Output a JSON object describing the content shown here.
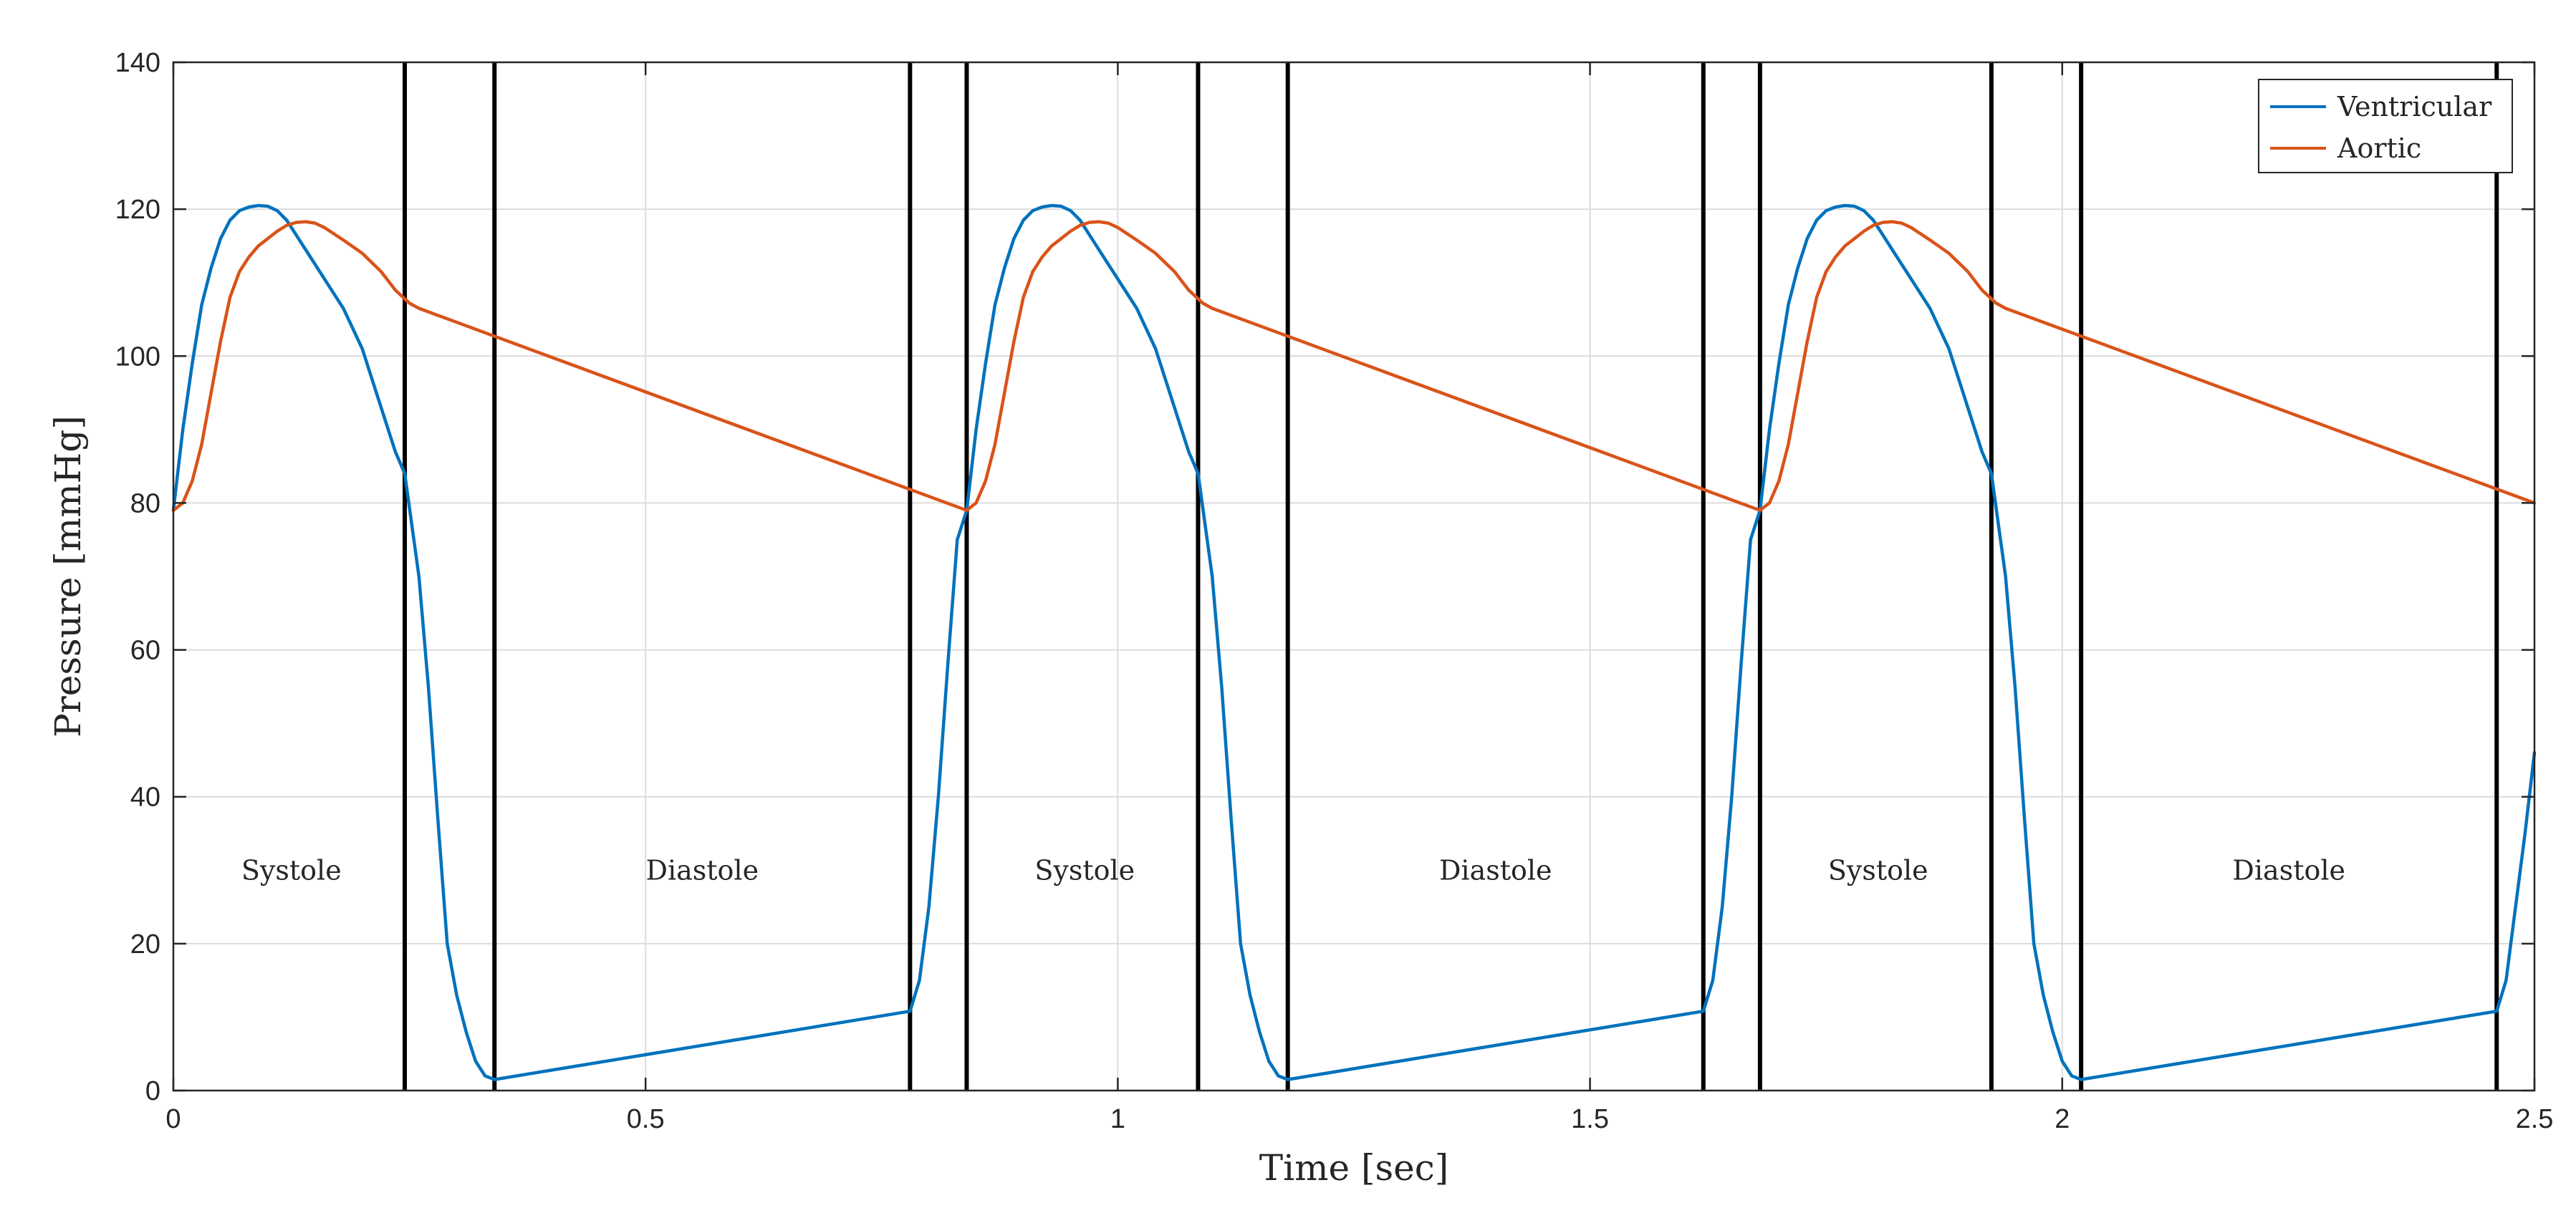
{
  "chart_data": {
    "type": "line",
    "xlabel": "Time [sec]",
    "ylabel": "Pressure [mmHg]",
    "xlim": [
      0,
      2.5
    ],
    "ylim": [
      0,
      140
    ],
    "grid": true,
    "x_ticks": [
      0,
      0.5,
      1,
      1.5,
      2,
      2.5
    ],
    "x_tick_labels": [
      "0",
      "0.5",
      "1",
      "1.5",
      "2",
      "2.5"
    ],
    "y_ticks": [
      0,
      20,
      40,
      60,
      80,
      100,
      120,
      140
    ],
    "y_tick_labels": [
      "0",
      "20",
      "40",
      "60",
      "80",
      "100",
      "120",
      "140"
    ],
    "legend": {
      "position": "top-right",
      "entries": [
        {
          "name": "Ventricular",
          "color": "#0072BD"
        },
        {
          "name": "Aortic",
          "color": "#D95319"
        }
      ]
    },
    "vertical_lines": [
      0.245,
      0.34,
      0.78,
      0.84,
      1.085,
      1.18,
      1.62,
      1.68,
      1.925,
      2.02,
      2.46
    ],
    "phase_labels": [
      {
        "text": "Systole",
        "x": 0.125,
        "y": 30
      },
      {
        "text": "Diastole",
        "x": 0.56,
        "y": 30
      },
      {
        "text": "Systole",
        "x": 0.965,
        "y": 30
      },
      {
        "text": "Diastole",
        "x": 1.4,
        "y": 30
      },
      {
        "text": "Systole",
        "x": 1.805,
        "y": 30
      },
      {
        "text": "Diastole",
        "x": 2.24,
        "y": 30
      }
    ],
    "series": [
      {
        "name": "Ventricular",
        "color": "#0072BD",
        "x": [
          0,
          0.01,
          0.02,
          0.03,
          0.04,
          0.05,
          0.06,
          0.07,
          0.08,
          0.09,
          0.1,
          0.11,
          0.12,
          0.13,
          0.14,
          0.15,
          0.16,
          0.18,
          0.2,
          0.22,
          0.235,
          0.245,
          0.26,
          0.27,
          0.28,
          0.29,
          0.3,
          0.31,
          0.32,
          0.33,
          0.34,
          0.78,
          0.79,
          0.8,
          0.81,
          0.82,
          0.83,
          0.84,
          0.85,
          0.86,
          0.87,
          0.88,
          0.89,
          0.9,
          0.91,
          0.92,
          0.93,
          0.94,
          0.95,
          0.96,
          0.97,
          0.98,
          0.99,
          1.0,
          1.02,
          1.04,
          1.06,
          1.075,
          1.085,
          1.1,
          1.11,
          1.12,
          1.13,
          1.14,
          1.15,
          1.16,
          1.17,
          1.18,
          1.62,
          1.63,
          1.64,
          1.65,
          1.66,
          1.67,
          1.68,
          1.69,
          1.7,
          1.71,
          1.72,
          1.73,
          1.74,
          1.75,
          1.76,
          1.77,
          1.78,
          1.79,
          1.8,
          1.81,
          1.82,
          1.83,
          1.84,
          1.86,
          1.88,
          1.9,
          1.915,
          1.925,
          1.94,
          1.95,
          1.96,
          1.97,
          1.98,
          1.99,
          2.0,
          2.01,
          2.02,
          2.46,
          2.47,
          2.48,
          2.49,
          2.5
        ],
        "values": [
          79,
          90,
          99,
          107,
          112,
          116,
          118.5,
          119.8,
          120.3,
          120.5,
          120.4,
          119.8,
          118.5,
          116.5,
          114.5,
          112.5,
          110.5,
          106.5,
          101,
          93,
          87,
          84,
          70,
          55,
          37,
          20,
          13,
          8,
          4,
          2,
          1.5,
          10.8,
          15,
          25,
          40,
          58,
          75,
          79,
          90,
          99,
          107,
          112,
          116,
          118.5,
          119.8,
          120.3,
          120.5,
          120.4,
          119.8,
          118.5,
          116.5,
          114.5,
          112.5,
          110.5,
          106.5,
          101,
          93,
          87,
          84,
          70,
          55,
          37,
          20,
          13,
          8,
          4,
          2,
          1.5,
          10.8,
          15,
          25,
          40,
          58,
          75,
          79,
          90,
          99,
          107,
          112,
          116,
          118.5,
          119.8,
          120.3,
          120.5,
          120.4,
          119.8,
          118.5,
          116.5,
          114.5,
          112.5,
          110.5,
          106.5,
          101,
          93,
          87,
          84,
          70,
          55,
          37,
          20,
          13,
          8,
          4,
          2,
          1.5,
          10.8,
          15,
          25,
          35,
          46
        ]
      },
      {
        "name": "Aortic",
        "color": "#D95319",
        "x": [
          0,
          0.01,
          0.02,
          0.03,
          0.04,
          0.05,
          0.06,
          0.07,
          0.08,
          0.09,
          0.1,
          0.11,
          0.12,
          0.13,
          0.14,
          0.15,
          0.16,
          0.18,
          0.2,
          0.22,
          0.235,
          0.245,
          0.25,
          0.26,
          0.84,
          0.85,
          0.86,
          0.87,
          0.88,
          0.89,
          0.9,
          0.91,
          0.92,
          0.93,
          0.94,
          0.95,
          0.96,
          0.97,
          0.98,
          0.99,
          1.0,
          1.02,
          1.04,
          1.06,
          1.075,
          1.085,
          1.09,
          1.1,
          1.68,
          1.69,
          1.7,
          1.71,
          1.72,
          1.73,
          1.74,
          1.75,
          1.76,
          1.77,
          1.78,
          1.79,
          1.8,
          1.81,
          1.82,
          1.83,
          1.84,
          1.86,
          1.88,
          1.9,
          1.915,
          1.925,
          1.93,
          1.94,
          2.5
        ],
        "values": [
          79,
          80,
          83,
          88,
          95,
          102,
          108,
          111.5,
          113.5,
          115,
          116,
          117,
          117.8,
          118.2,
          118.3,
          118.1,
          117.5,
          115.8,
          114,
          111.5,
          109,
          107.8,
          107.2,
          106.5,
          79,
          80,
          83,
          88,
          95,
          102,
          108,
          111.5,
          113.5,
          115,
          116,
          117,
          117.8,
          118.2,
          118.3,
          118.1,
          117.5,
          115.8,
          114,
          111.5,
          109,
          107.8,
          107.2,
          106.5,
          79,
          80,
          83,
          88,
          95,
          102,
          108,
          111.5,
          113.5,
          115,
          116,
          117,
          117.8,
          118.2,
          118.3,
          118.1,
          117.5,
          115.8,
          114,
          111.5,
          109,
          107.8,
          107.2,
          106.5,
          80
        ]
      }
    ]
  }
}
